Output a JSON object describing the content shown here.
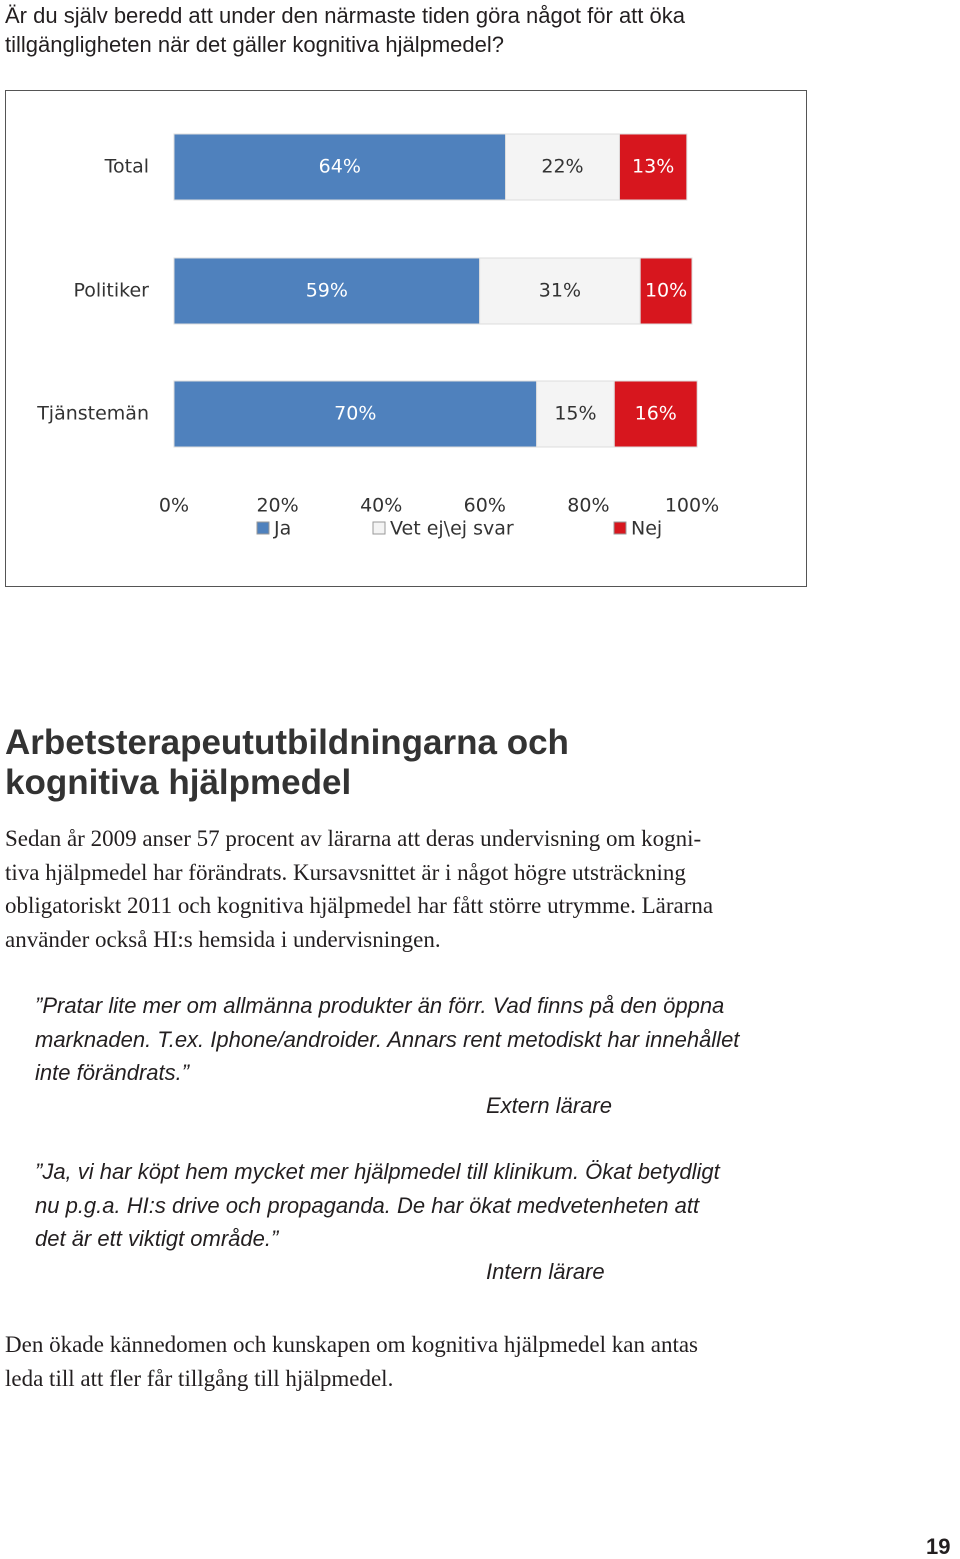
{
  "question": [
    "Är du själv beredd att under den närmaste tiden göra något för att öka",
    "tillgängligheten när det gäller kognitiva hjälpmedel?"
  ],
  "chart_data": {
    "type": "stacked-bar-horizontal",
    "categories": [
      "Total",
      "Politiker",
      "Tjänstemän"
    ],
    "series": [
      {
        "name": "Ja",
        "color": "#4f81bd",
        "values": [
          64,
          59,
          70
        ],
        "value_labels": [
          "64%",
          "59%",
          "70%"
        ]
      },
      {
        "name": "Vet ej\\ej svar",
        "color": "#f4f4f4",
        "values": [
          22,
          31,
          15
        ],
        "value_labels": [
          "22%",
          "31%",
          "15%"
        ]
      },
      {
        "name": "Nej",
        "color": "#d7161e",
        "values": [
          13,
          10,
          16
        ],
        "value_labels": [
          "13%",
          "10%",
          "16%"
        ]
      }
    ],
    "xlim": [
      0,
      100
    ],
    "xticks": [
      {
        "value": 0,
        "label": "0%"
      },
      {
        "value": 20,
        "label": "20%"
      },
      {
        "value": 40,
        "label": "40%"
      },
      {
        "value": 60,
        "label": "60%"
      },
      {
        "value": 80,
        "label": "80%"
      },
      {
        "value": 100,
        "label": "100%"
      }
    ]
  },
  "heading": [
    "Arbetsterapeututbildningarna och",
    "kognitiva hjälpmedel"
  ],
  "paragraph": [
    "Sedan år 2009 anser 57 procent av lärarna att deras undervisning om kogni-",
    "tiva hjälpmedel har förändrats. Kursavsnittet är i något högre utsträckning",
    "obligatoriskt 2011 och kognitiva hjälpmedel har fått större utrymme. Lärarna",
    "använder också HI:s hemsida i undervisningen."
  ],
  "quotes": [
    {
      "lines": [
        "”Pratar lite mer om allmänna produkter än förr. Vad finns på den öppna",
        "marknaden. T.ex. Iphone/androider. Annars rent metodiskt har innehållet",
        "inte förändrats.”"
      ],
      "source": "Extern lärare"
    },
    {
      "lines": [
        "”Ja, vi har köpt hem mycket mer hjälpmedel till klinikum. Ökat betydligt",
        "nu p.g.a. HI:s drive och propaganda. De har ökat medvetenheten att",
        "det är ett viktigt område.”"
      ],
      "source": "Intern lärare"
    }
  ],
  "conclusion": [
    "Den ökade kännedomen och kunskapen om kognitiva hjälpmedel kan antas",
    "leda till att fler får tillgång till hjälpmedel."
  ],
  "page_number": "19"
}
